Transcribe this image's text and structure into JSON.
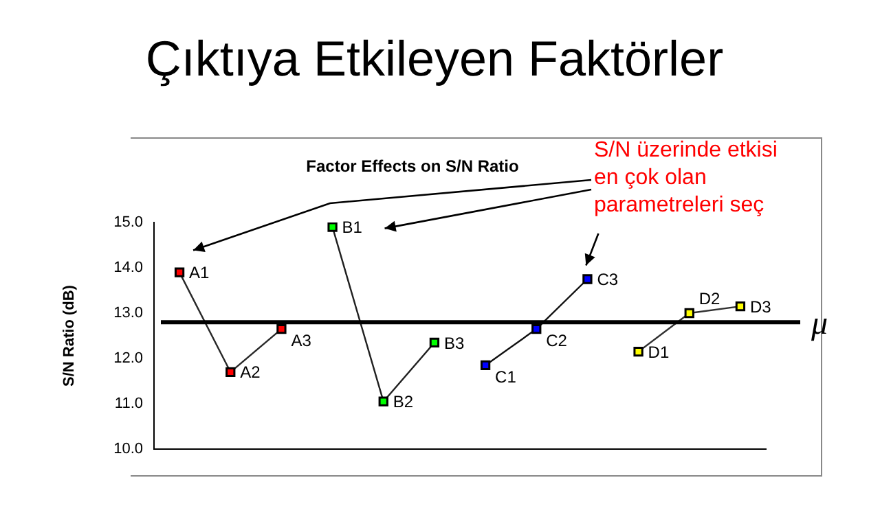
{
  "chart_data": {
    "type": "line",
    "title": "Çıktıya Etkileyen Faktörler",
    "subtitle": "Factor Effects on S/N Ratio",
    "ylabel": "S/N Ratio (dB)",
    "categories": [
      null,
      null,
      null,
      null,
      null,
      null,
      null,
      null,
      null,
      null,
      null,
      null
    ],
    "ylim": [
      10,
      15
    ],
    "yticks": [
      {
        "value": 10,
        "label": "10.0"
      },
      {
        "value": 11,
        "label": "11.0"
      },
      {
        "value": 12,
        "label": "12.0"
      },
      {
        "value": 13,
        "label": "13.0"
      },
      {
        "value": 14,
        "label": "14.0"
      },
      {
        "value": 15,
        "label": "15.0"
      }
    ],
    "tick_labels": "y",
    "grid": false,
    "legend": false,
    "marker": "square",
    "line_style": "solid",
    "series": [
      {
        "color": "#282828",
        "colors": [
          "#ff0000",
          "#ff0000",
          "#ff0000",
          null,
          null,
          null,
          null,
          null,
          null,
          null,
          null,
          null
        ],
        "values": [
          13.9,
          11.7,
          12.65,
          null,
          null,
          null,
          null,
          null,
          null,
          null,
          null,
          null
        ]
      },
      {
        "color": "#202020",
        "colors": [
          null,
          null,
          null,
          "#00ff00",
          "#00ff00",
          "#00ff00",
          null,
          null,
          null,
          null,
          null,
          null
        ],
        "values": [
          null,
          null,
          null,
          14.9,
          11.05,
          12.35,
          null,
          null,
          null,
          null,
          null,
          null
        ]
      },
      {
        "color": "#101010",
        "colors": [
          null,
          null,
          null,
          null,
          null,
          null,
          "#0000ff",
          "#0000ff",
          "#0000ff",
          null,
          null,
          null
        ],
        "values": [
          null,
          null,
          null,
          null,
          null,
          null,
          11.85,
          12.65,
          13.75,
          null,
          null,
          null
        ]
      },
      {
        "color": "#303030",
        "colors": [
          null,
          null,
          null,
          null,
          null,
          null,
          null,
          null,
          null,
          "#ffff00",
          "#ffff00",
          "#ffff00"
        ],
        "values": [
          null,
          null,
          null,
          null,
          null,
          null,
          null,
          null,
          null,
          12.15,
          13.0,
          13.15
        ]
      }
    ],
    "ref_lines": [
      {
        "axis": "y",
        "value": 12.8,
        "label": "μ",
        "color": "#000000"
      }
    ],
    "annotations": [
      "A1",
      "A2",
      "A3",
      "B1",
      "B2",
      "B3",
      "C1",
      "C2",
      "C3",
      "D1",
      "D2",
      "D3",
      "S/N üzerinde etkisi en çok olan parametreleri seç"
    ]
  }
}
